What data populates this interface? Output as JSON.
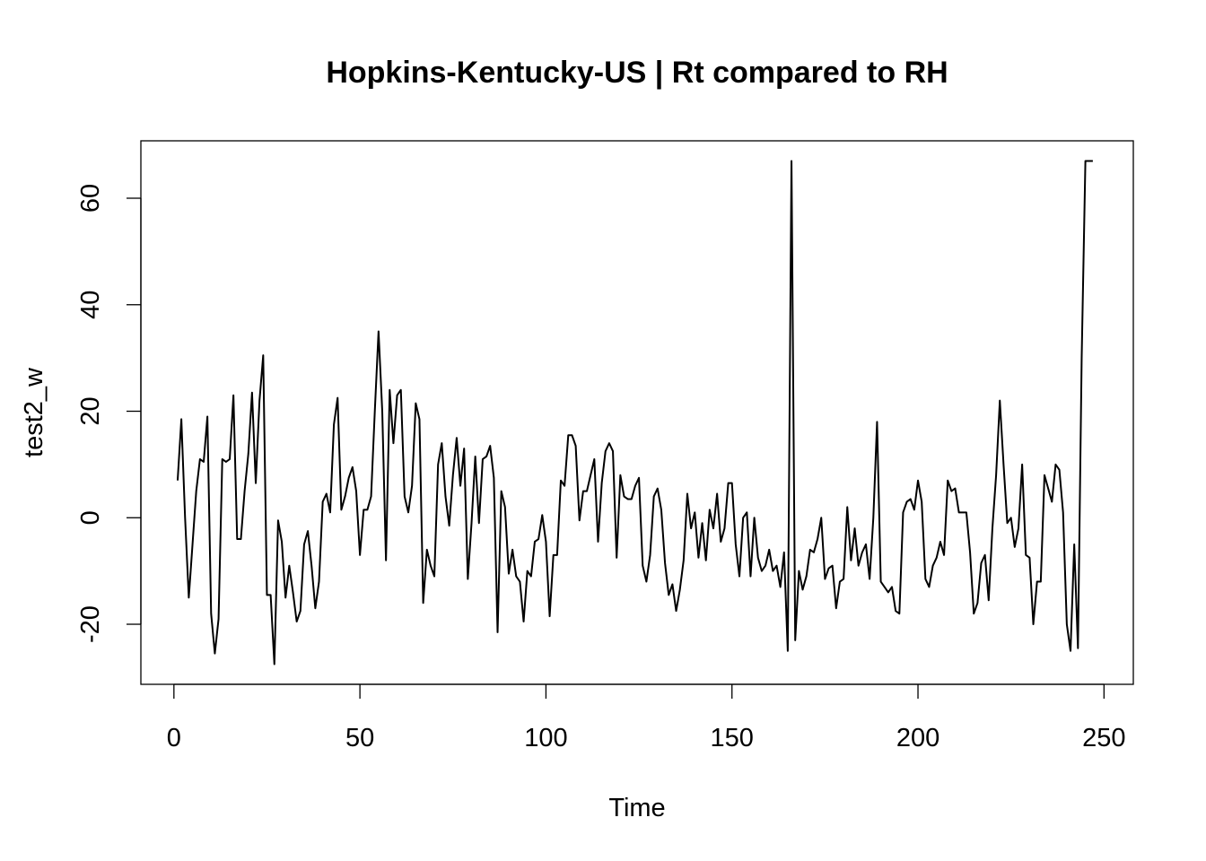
{
  "chart_data": {
    "type": "line",
    "title": "Hopkins-Kentucky-US | Rt compared to RH",
    "xlabel": "Time",
    "ylabel": "test2_w",
    "xlim": [
      1,
      248
    ],
    "ylim": [
      -27.5,
      67
    ],
    "x_ticks": [
      0,
      50,
      100,
      150,
      200,
      250
    ],
    "y_ticks": [
      -20,
      0,
      20,
      40,
      60
    ],
    "grid": false,
    "series": [
      {
        "color": "#000000",
        "x_start": 1,
        "values": [
          7,
          18.5,
          0,
          -15,
          -5,
          5,
          11,
          10.5,
          19,
          -18,
          -25.5,
          -19,
          11,
          10.5,
          11,
          23,
          -4,
          -4,
          5,
          12,
          23.5,
          6.5,
          22,
          30.5,
          -14.5,
          -14.5,
          -27.5,
          -0.5,
          -4.5,
          -15,
          -9,
          -14,
          -19.5,
          -17.5,
          -5,
          -2.5,
          -9,
          -17,
          -12,
          3,
          4.5,
          1,
          17.5,
          22.5,
          1.5,
          4,
          7.5,
          9.5,
          5,
          -7,
          1.5,
          1.5,
          4,
          20,
          35,
          20,
          -8,
          24,
          14,
          23,
          24,
          4,
          1,
          6,
          21.5,
          18.5,
          -16,
          -6,
          -9,
          -11,
          10,
          14,
          4,
          -1.5,
          8,
          15,
          6,
          13,
          -11.5,
          -1,
          11.5,
          -1,
          11,
          11.5,
          13.5,
          7.5,
          -21.5,
          5,
          2,
          -10.5,
          -6,
          -11,
          -12,
          -19.5,
          -10,
          -11,
          -4.5,
          -4,
          0.5,
          -4.5,
          -18.5,
          -7,
          -7,
          7,
          6,
          15.5,
          15.5,
          13.5,
          -0.5,
          5,
          5,
          8,
          11,
          -4.5,
          6.5,
          12.5,
          14,
          12.5,
          -7.5,
          8,
          4,
          3.5,
          3.5,
          6,
          7.5,
          -9,
          -12,
          -7,
          4,
          5.5,
          1.5,
          -8.5,
          -14.5,
          -12.5,
          -17.5,
          -13.5,
          -8,
          4.5,
          -2,
          1,
          -7.5,
          -1,
          -8,
          1.5,
          -2,
          4.5,
          -4.5,
          -2,
          6.5,
          6.5,
          -5,
          -11,
          0,
          1,
          -11,
          0,
          -7.5,
          -10,
          -9,
          -6,
          -10,
          -9,
          -13,
          -6.5,
          -25,
          67,
          -23,
          -10,
          -13.5,
          -11,
          -6,
          -6.5,
          -4,
          0,
          -11.5,
          -9.5,
          -9,
          -17,
          -12,
          -11.5,
          2,
          -8,
          -2,
          -9,
          -6.5,
          -5,
          -11.5,
          0,
          18,
          -12,
          -13,
          -14,
          -13,
          -17.5,
          -18,
          1,
          3,
          3.5,
          1.5,
          7,
          3,
          -11.5,
          -13,
          -9,
          -7.5,
          -4.5,
          -7,
          7,
          5,
          5.5,
          1,
          1,
          1,
          -6.5,
          -18,
          -16,
          -8.5,
          -7,
          -15.5,
          -2,
          8,
          22,
          10,
          -1,
          0,
          -5.5,
          -2,
          10,
          -7,
          -7.5,
          -20,
          -12,
          -12,
          8,
          5.5,
          3,
          10,
          9,
          1,
          -20,
          -25,
          -5,
          -24.5,
          30,
          67,
          67,
          67
        ]
      }
    ]
  }
}
